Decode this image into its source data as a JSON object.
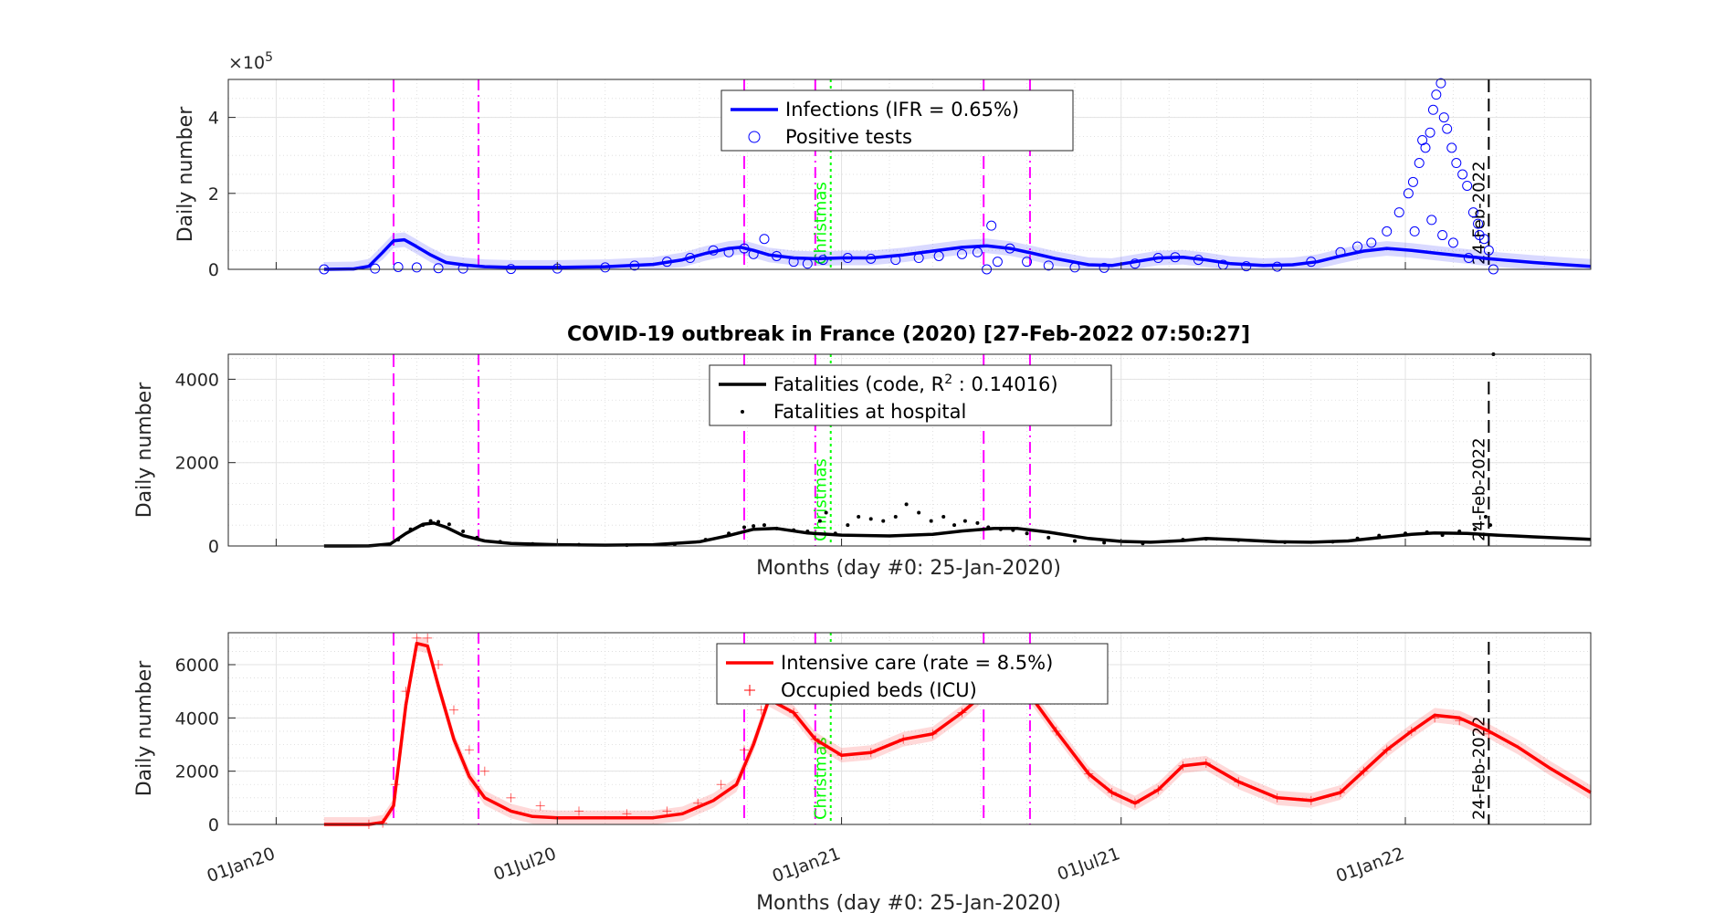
{
  "figure": {
    "title": "COVID-19 outbreak in France (2020) [27-Feb-2022 07:50:27]",
    "xlabel": "Months (day #0: 25-Jan-2020)",
    "x_ticks": [
      "01Jan20",
      "01Jul20",
      "01Jan21",
      "01Jul21",
      "01Jan22"
    ],
    "markers": [
      {
        "date": "2020-03-17",
        "style": "dashed",
        "color": "#ff00ff",
        "label": ""
      },
      {
        "date": "2020-05-11",
        "style": "dashdot",
        "color": "#ff00ff",
        "label": ""
      },
      {
        "date": "2020-10-30",
        "style": "dashed",
        "color": "#ff00ff",
        "label": ""
      },
      {
        "date": "2020-12-15",
        "style": "dashdot",
        "color": "#ff00ff",
        "label": ""
      },
      {
        "date": "2020-12-25",
        "style": "dotted",
        "color": "#00ff00",
        "label": "Christmas"
      },
      {
        "date": "2021-04-03",
        "style": "dashed",
        "color": "#ff00ff",
        "label": ""
      },
      {
        "date": "2021-05-03",
        "style": "dashdot",
        "color": "#ff00ff",
        "label": ""
      },
      {
        "date": "2022-02-24",
        "style": "dashed",
        "color": "#000000",
        "label": "24-Feb-2022"
      }
    ]
  },
  "chart_data": [
    {
      "type": "line",
      "ylabel": "Daily number",
      "y_exponent": "×10",
      "y_exponent_power": "5",
      "ylim": [
        0,
        5
      ],
      "yticks": [
        0,
        2,
        4
      ],
      "grid": true,
      "legend_position": "top-center",
      "series": [
        {
          "name": "Infections (IFR = 0.65%)",
          "color": "#0000ff",
          "kind": "line",
          "x": [
            "2020-02-01",
            "2020-02-20",
            "2020-03-01",
            "2020-03-10",
            "2020-03-17",
            "2020-03-24",
            "2020-03-31",
            "2020-04-10",
            "2020-04-20",
            "2020-05-01",
            "2020-05-15",
            "2020-06-01",
            "2020-07-01",
            "2020-08-01",
            "2020-09-01",
            "2020-09-20",
            "2020-10-05",
            "2020-10-20",
            "2020-10-28",
            "2020-11-05",
            "2020-11-15",
            "2020-12-01",
            "2020-12-15",
            "2021-01-01",
            "2021-01-20",
            "2021-02-10",
            "2021-03-01",
            "2021-03-20",
            "2021-04-05",
            "2021-04-20",
            "2021-05-05",
            "2021-05-20",
            "2021-06-10",
            "2021-06-25",
            "2021-07-10",
            "2021-07-25",
            "2021-08-10",
            "2021-08-25",
            "2021-09-10",
            "2021-10-01",
            "2021-10-20",
            "2021-11-05",
            "2021-11-20",
            "2021-12-05",
            "2021-12-20",
            "2022-01-05",
            "2022-01-20",
            "2022-02-05",
            "2022-02-24",
            "2022-03-10",
            "2022-03-25",
            "2022-04-15",
            "2022-05-01"
          ],
          "values": [
            0.0,
            0.01,
            0.08,
            0.45,
            0.75,
            0.78,
            0.62,
            0.38,
            0.18,
            0.12,
            0.07,
            0.05,
            0.05,
            0.07,
            0.13,
            0.25,
            0.42,
            0.55,
            0.58,
            0.5,
            0.38,
            0.3,
            0.28,
            0.3,
            0.3,
            0.38,
            0.48,
            0.58,
            0.62,
            0.55,
            0.42,
            0.28,
            0.12,
            0.1,
            0.2,
            0.3,
            0.32,
            0.25,
            0.15,
            0.1,
            0.12,
            0.2,
            0.35,
            0.48,
            0.55,
            0.5,
            0.43,
            0.36,
            0.28,
            0.23,
            0.18,
            0.12,
            0.08
          ]
        },
        {
          "name": "Positive tests",
          "color": "#0000ff",
          "kind": "circles",
          "x": [
            "2020-02-01",
            "2020-03-05",
            "2020-03-20",
            "2020-04-01",
            "2020-04-15",
            "2020-05-01",
            "2020-06-01",
            "2020-07-01",
            "2020-08-01",
            "2020-08-20",
            "2020-09-10",
            "2020-09-25",
            "2020-10-10",
            "2020-10-20",
            "2020-10-30",
            "2020-11-05",
            "2020-11-12",
            "2020-11-20",
            "2020-12-01",
            "2020-12-10",
            "2020-12-20",
            "2021-01-05",
            "2021-01-20",
            "2021-02-05",
            "2021-02-20",
            "2021-03-05",
            "2021-03-20",
            "2021-03-30",
            "2021-04-05",
            "2021-04-08",
            "2021-04-12",
            "2021-04-20",
            "2021-05-01",
            "2021-05-15",
            "2021-06-01",
            "2021-06-20",
            "2021-07-10",
            "2021-07-25",
            "2021-08-05",
            "2021-08-20",
            "2021-09-05",
            "2021-09-20",
            "2021-10-10",
            "2021-11-01",
            "2021-11-20",
            "2021-12-01",
            "2021-12-10",
            "2021-12-20",
            "2021-12-28",
            "2022-01-03",
            "2022-01-06",
            "2022-01-10",
            "2022-01-12",
            "2022-01-14",
            "2022-01-17",
            "2022-01-19",
            "2022-01-21",
            "2022-01-24",
            "2022-01-26",
            "2022-01-28",
            "2022-01-31",
            "2022-02-03",
            "2022-02-07",
            "2022-02-10",
            "2022-02-14",
            "2022-02-17",
            "2022-02-21",
            "2022-02-24",
            "2022-02-27",
            "2022-01-07",
            "2022-01-18",
            "2022-01-25",
            "2022-02-01",
            "2022-02-11",
            "2022-02-18"
          ],
          "values": [
            0.0,
            0.02,
            0.06,
            0.05,
            0.03,
            0.02,
            0.01,
            0.02,
            0.05,
            0.1,
            0.2,
            0.3,
            0.5,
            0.45,
            0.55,
            0.4,
            0.8,
            0.35,
            0.2,
            0.15,
            0.25,
            0.3,
            0.28,
            0.25,
            0.3,
            0.35,
            0.4,
            0.45,
            0.0,
            1.15,
            0.2,
            0.55,
            0.2,
            0.1,
            0.05,
            0.04,
            0.15,
            0.3,
            0.32,
            0.25,
            0.12,
            0.08,
            0.07,
            0.2,
            0.45,
            0.6,
            0.7,
            1.0,
            1.5,
            2.0,
            2.3,
            2.8,
            3.4,
            3.2,
            3.6,
            4.2,
            4.6,
            4.9,
            4.0,
            3.7,
            3.2,
            2.8,
            2.5,
            2.2,
            1.5,
            1.2,
            0.8,
            0.5,
            0.0,
            1.0,
            1.3,
            0.9,
            0.7,
            0.3,
            0.9
          ]
        }
      ]
    },
    {
      "type": "line",
      "ylabel": "Daily number",
      "ylim": [
        0,
        4600
      ],
      "yticks": [
        0,
        2000,
        4000
      ],
      "grid": true,
      "legend_position": "top-center",
      "series": [
        {
          "name": "Fatalities (code, R",
          "name_sup": "2",
          "name_tail": " : 0.14016)",
          "color": "#000000",
          "kind": "line",
          "x": [
            "2020-02-01",
            "2020-03-01",
            "2020-03-15",
            "2020-03-25",
            "2020-04-05",
            "2020-04-12",
            "2020-04-20",
            "2020-05-01",
            "2020-05-15",
            "2020-06-01",
            "2020-07-01",
            "2020-08-01",
            "2020-09-01",
            "2020-10-01",
            "2020-10-20",
            "2020-11-05",
            "2020-11-20",
            "2020-12-10",
            "2021-01-01",
            "2021-02-01",
            "2021-03-01",
            "2021-03-20",
            "2021-04-10",
            "2021-04-25",
            "2021-05-15",
            "2021-06-10",
            "2021-07-01",
            "2021-07-20",
            "2021-08-10",
            "2021-08-25",
            "2021-09-15",
            "2021-10-10",
            "2021-11-01",
            "2021-11-25",
            "2021-12-15",
            "2022-01-05",
            "2022-01-20",
            "2022-02-10",
            "2022-03-01",
            "2022-03-25",
            "2022-05-01"
          ],
          "values": [
            0,
            2,
            50,
            300,
            520,
            550,
            450,
            250,
            120,
            60,
            30,
            20,
            30,
            100,
            250,
            400,
            420,
            310,
            260,
            240,
            280,
            360,
            420,
            420,
            330,
            180,
            110,
            90,
            130,
            180,
            150,
            100,
            90,
            120,
            200,
            280,
            310,
            300,
            260,
            220,
            160
          ]
        },
        {
          "name": "Fatalities at hospital",
          "color": "#000000",
          "kind": "dots",
          "x": [
            "2020-03-20",
            "2020-03-28",
            "2020-04-05",
            "2020-04-10",
            "2020-04-15",
            "2020-04-22",
            "2020-05-01",
            "2020-05-10",
            "2020-05-25",
            "2020-06-15",
            "2020-07-15",
            "2020-08-15",
            "2020-09-15",
            "2020-10-05",
            "2020-10-20",
            "2020-10-30",
            "2020-11-05",
            "2020-11-12",
            "2020-11-20",
            "2020-12-01",
            "2020-12-10",
            "2020-12-18",
            "2020-12-22",
            "2020-12-28",
            "2021-01-05",
            "2021-01-12",
            "2021-01-20",
            "2021-01-28",
            "2021-02-05",
            "2021-02-12",
            "2021-02-20",
            "2021-02-28",
            "2021-03-08",
            "2021-03-15",
            "2021-03-22",
            "2021-03-30",
            "2021-04-06",
            "2021-04-14",
            "2021-04-22",
            "2021-05-01",
            "2021-05-15",
            "2021-06-01",
            "2021-06-20",
            "2021-07-15",
            "2021-08-10",
            "2021-08-25",
            "2021-09-15",
            "2021-10-15",
            "2021-11-15",
            "2021-12-01",
            "2021-12-15",
            "2022-01-01",
            "2022-01-15",
            "2022-01-25",
            "2022-02-05",
            "2022-02-15",
            "2022-02-22",
            "2022-02-25",
            "2022-02-27"
          ],
          "values": [
            150,
            400,
            500,
            600,
            580,
            520,
            350,
            200,
            100,
            50,
            30,
            20,
            40,
            150,
            300,
            450,
            480,
            500,
            420,
            380,
            350,
            600,
            800,
            300,
            500,
            700,
            650,
            600,
            700,
            1000,
            800,
            600,
            700,
            500,
            600,
            550,
            450,
            400,
            380,
            300,
            200,
            120,
            80,
            60,
            150,
            170,
            140,
            90,
            100,
            180,
            250,
            300,
            330,
            260,
            350,
            400,
            700,
            500,
            4600
          ]
        }
      ]
    },
    {
      "type": "line",
      "ylabel": "Daily number",
      "ylim": [
        0,
        7200
      ],
      "yticks": [
        0,
        2000,
        4000,
        6000
      ],
      "grid": true,
      "legend_position": "top-center",
      "series": [
        {
          "name": "Intensive care (rate = 8.5%)",
          "color": "#ff0000",
          "kind": "line",
          "x": [
            "2020-02-01",
            "2020-03-01",
            "2020-03-10",
            "2020-03-17",
            "2020-03-25",
            "2020-04-01",
            "2020-04-08",
            "2020-04-15",
            "2020-04-25",
            "2020-05-05",
            "2020-05-15",
            "2020-06-01",
            "2020-06-15",
            "2020-07-01",
            "2020-08-01",
            "2020-09-01",
            "2020-09-20",
            "2020-10-10",
            "2020-10-25",
            "2020-11-05",
            "2020-11-15",
            "2020-12-01",
            "2020-12-15",
            "2021-01-01",
            "2021-01-20",
            "2021-02-10",
            "2021-03-01",
            "2021-03-20",
            "2021-04-05",
            "2021-04-20",
            "2021-05-05",
            "2021-05-20",
            "2021-06-10",
            "2021-06-25",
            "2021-07-10",
            "2021-07-25",
            "2021-08-10",
            "2021-08-25",
            "2021-09-15",
            "2021-10-10",
            "2021-11-01",
            "2021-11-20",
            "2021-12-05",
            "2021-12-20",
            "2022-01-05",
            "2022-01-20",
            "2022-02-05",
            "2022-02-24",
            "2022-03-15",
            "2022-04-05",
            "2022-05-01"
          ],
          "values": [
            0,
            0,
            80,
            700,
            4500,
            6800,
            6700,
            5200,
            3200,
            1800,
            1000,
            500,
            300,
            250,
            250,
            250,
            400,
            900,
            1500,
            3000,
            4700,
            4200,
            3200,
            2600,
            2700,
            3200,
            3400,
            4200,
            5000,
            5200,
            4700,
            3500,
            1900,
            1200,
            800,
            1300,
            2200,
            2300,
            1600,
            1000,
            900,
            1200,
            2000,
            2800,
            3500,
            4100,
            4000,
            3500,
            2900,
            2100,
            1200
          ]
        },
        {
          "name": "Occupied beds (ICU)",
          "color": "#ff0000",
          "kind": "plus",
          "x": [
            "2020-03-01",
            "2020-03-10",
            "2020-03-18",
            "2020-03-25",
            "2020-04-01",
            "2020-04-08",
            "2020-04-15",
            "2020-04-25",
            "2020-05-05",
            "2020-05-15",
            "2020-06-01",
            "2020-06-20",
            "2020-07-15",
            "2020-08-15",
            "2020-09-10",
            "2020-09-30",
            "2020-10-15",
            "2020-10-30",
            "2020-11-10",
            "2020-11-20",
            "2020-12-01",
            "2020-12-15",
            "2021-01-01",
            "2021-01-20",
            "2021-02-10",
            "2021-03-01",
            "2021-03-20",
            "2021-04-05",
            "2021-04-20",
            "2021-05-05",
            "2021-05-20",
            "2021-06-10",
            "2021-06-25",
            "2021-07-10",
            "2021-07-25",
            "2021-08-10",
            "2021-08-25",
            "2021-09-15",
            "2021-10-10",
            "2021-11-01",
            "2021-11-20",
            "2021-12-05",
            "2021-12-20",
            "2022-01-05",
            "2022-01-20",
            "2022-02-05",
            "2022-02-24"
          ],
          "values": [
            0,
            50,
            1500,
            5000,
            7000,
            7000,
            6000,
            4300,
            2800,
            2000,
            1000,
            700,
            500,
            400,
            500,
            800,
            1500,
            2800,
            4300,
            4700,
            4200,
            3200,
            2600,
            2700,
            3200,
            3400,
            4200,
            5000,
            5200,
            4700,
            3500,
            1900,
            1200,
            800,
            1300,
            2200,
            2300,
            1600,
            1000,
            900,
            1200,
            2000,
            2800,
            3500,
            4000,
            3900,
            3400
          ]
        }
      ]
    }
  ]
}
